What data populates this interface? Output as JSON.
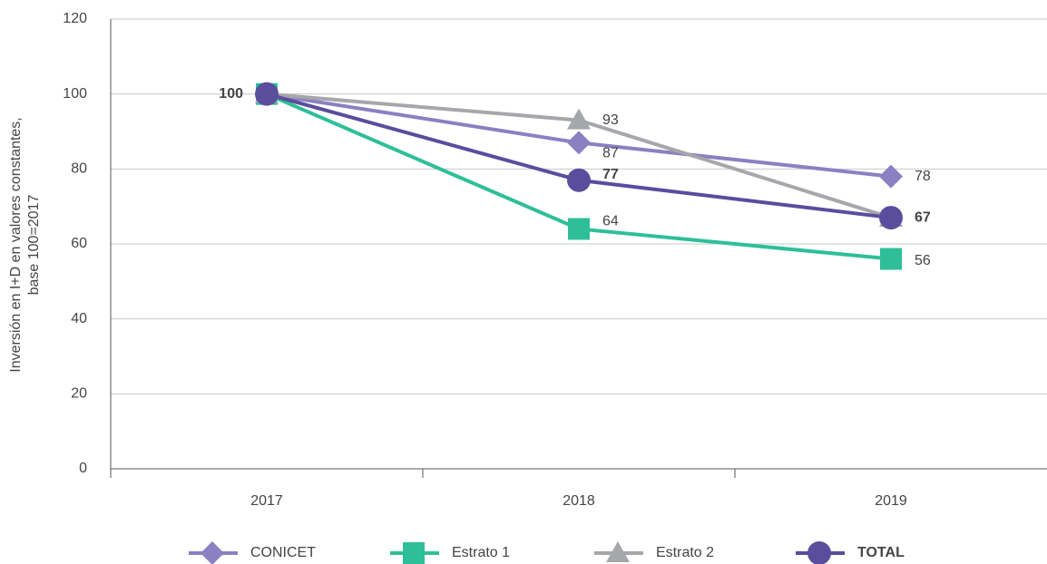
{
  "chart_data": {
    "type": "line",
    "ylabel": [
      "Inversión en I+D en valores constantes,",
      "base 100=2017"
    ],
    "categories": [
      "2017",
      "2018",
      "2019"
    ],
    "ylim": [
      0,
      120
    ],
    "yticks": [
      0,
      20,
      40,
      60,
      80,
      100,
      120
    ],
    "grid": true,
    "legend": "bottom",
    "series": [
      {
        "name": "CONICET",
        "color": "#8b80c2",
        "marker": "diamond",
        "values": [
          100,
          87,
          78
        ],
        "value_labels": [
          null,
          "87",
          "78"
        ]
      },
      {
        "name": "Estrato 1",
        "color": "#2ebf99",
        "marker": "square",
        "values": [
          100,
          64,
          56
        ],
        "value_labels": [
          null,
          "64",
          "56"
        ]
      },
      {
        "name": "Estrato 2",
        "color": "#a5a7aa",
        "marker": "triangle",
        "values": [
          100,
          93,
          67
        ],
        "value_labels": [
          null,
          "93",
          null
        ]
      },
      {
        "name": "TOTAL",
        "color": "#5a4d9e",
        "marker": "circle",
        "bold": true,
        "values": [
          100,
          77,
          67
        ],
        "value_labels": [
          "100",
          "77",
          "67"
        ]
      }
    ]
  }
}
